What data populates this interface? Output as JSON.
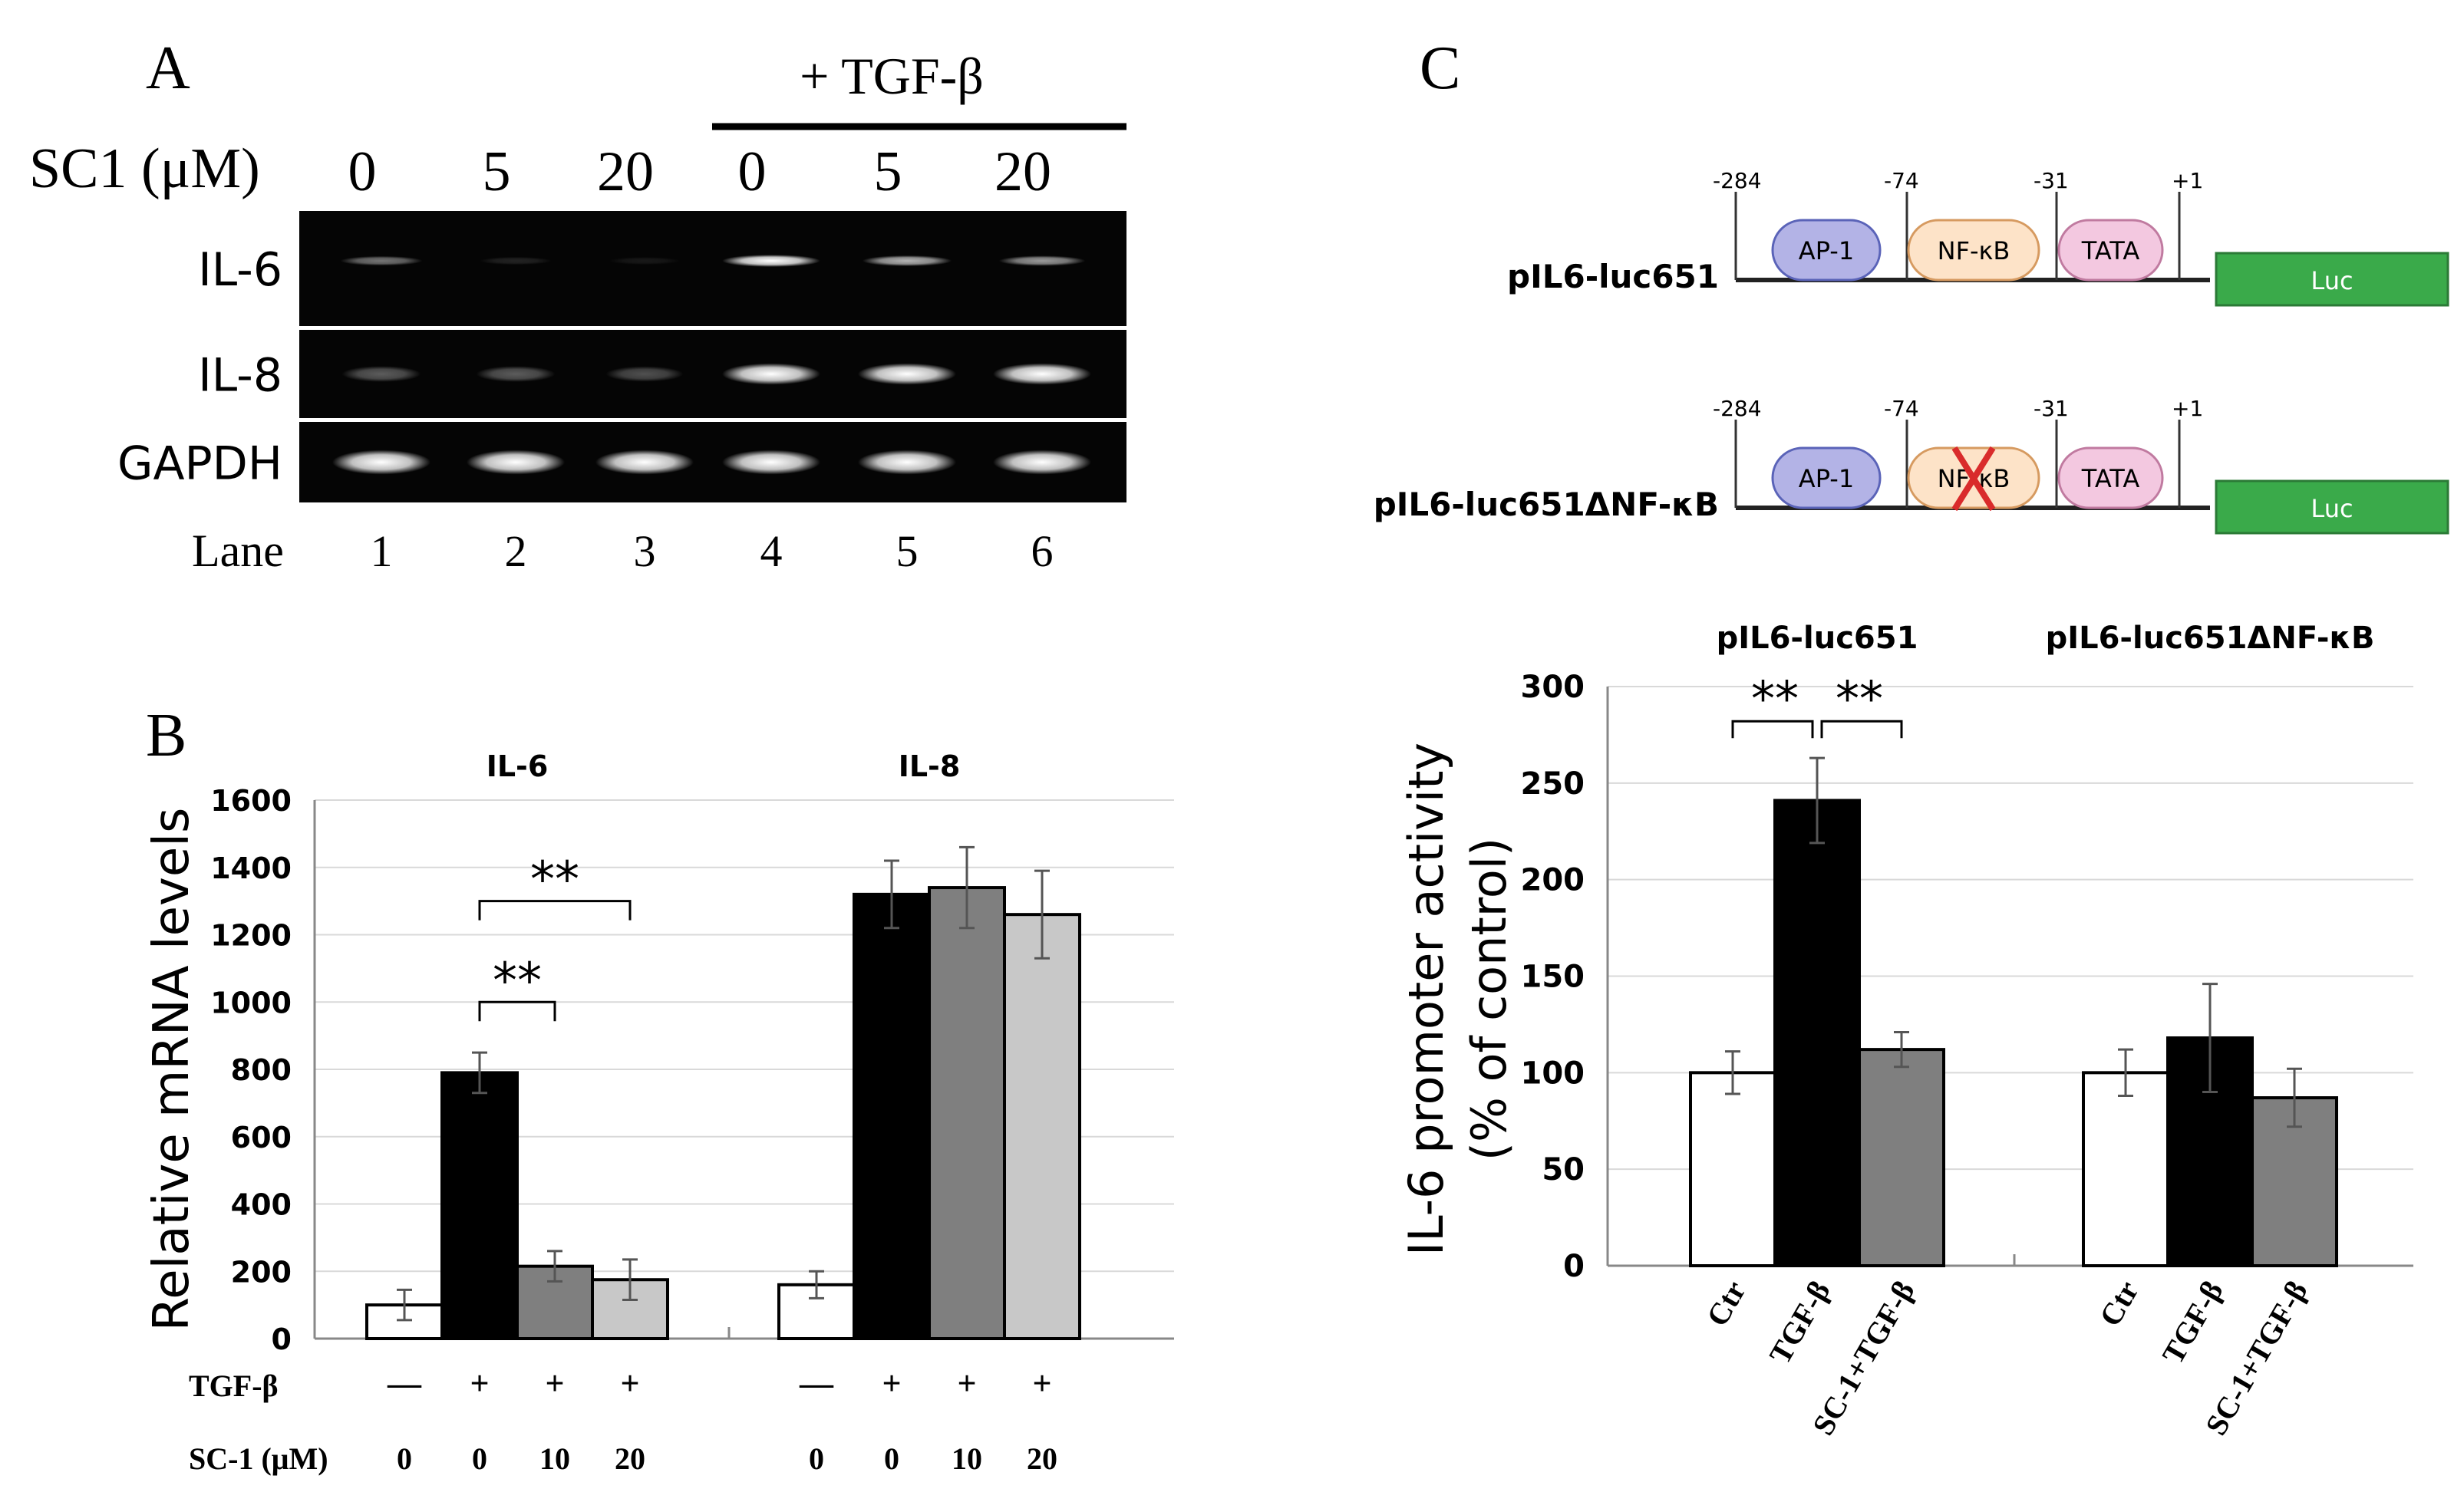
{
  "panel_a": {
    "label": "A",
    "treatment_header": "+ TGF-β",
    "dose_axis_label": "SC1 (μM)",
    "doses": [
      "0",
      "5",
      "20",
      "0",
      "5",
      "20"
    ],
    "genes": [
      "IL-6",
      "IL-8",
      "GAPDH"
    ],
    "lane_label": "Lane",
    "lanes": [
      "1",
      "2",
      "3",
      "4",
      "5",
      "6"
    ],
    "band_intensity": [
      [
        0.45,
        0.12,
        0.08,
        1.0,
        0.7,
        0.6
      ],
      [
        0.35,
        0.35,
        0.3,
        1.0,
        1.0,
        1.0
      ],
      [
        1.0,
        1.0,
        1.0,
        1.0,
        1.0,
        1.0
      ]
    ]
  },
  "panel_b": {
    "label": "B",
    "chart_data": {
      "type": "bar",
      "ylabel": "Relative mRNA levels",
      "ylim": [
        0,
        1600
      ],
      "yticks": [
        "0",
        "200",
        "400",
        "600",
        "800",
        "1000",
        "1200",
        "1400",
        "1600"
      ],
      "grid": true,
      "groups": [
        {
          "name": "IL-6",
          "values": [
            100,
            790,
            215,
            175
          ],
          "errors": [
            45,
            60,
            45,
            60
          ]
        },
        {
          "name": "IL-8",
          "values": [
            160,
            1320,
            1340,
            1260
          ],
          "errors": [
            40,
            100,
            120,
            130
          ]
        }
      ],
      "series_colors": [
        "#ffffff",
        "#000000",
        "#7f7f7f",
        "#c8c8c8"
      ],
      "row_labels": [
        "TGF-β",
        "SC-1 (μM)"
      ],
      "tgf_row": [
        "—",
        "+",
        "+",
        "+"
      ],
      "sc1_row": [
        "0",
        "0",
        "10",
        "20"
      ],
      "significance": [
        {
          "group": 0,
          "from": 1,
          "to": 2,
          "label": "**",
          "y": 1000
        },
        {
          "group": 0,
          "from": 1,
          "to": 3,
          "label": "**",
          "y": 1300
        }
      ]
    }
  },
  "panel_c": {
    "label": "C",
    "constructs": [
      {
        "name": "pIL6-luc651",
        "positions": [
          "-284",
          "-74",
          "-31",
          "+1"
        ],
        "elements": [
          "AP-1",
          "NF-κB",
          "TATA"
        ],
        "reporter": "Luc",
        "nfkb_deleted": false
      },
      {
        "name": "pIL6-luc651ΔNF-κB",
        "positions": [
          "-284",
          "-74",
          "-31",
          "+1"
        ],
        "elements": [
          "AP-1",
          "NF-κB",
          "TATA"
        ],
        "reporter": "Luc",
        "nfkb_deleted": true
      }
    ],
    "element_colors": [
      "#b3b3e6",
      "#fde3c8",
      "#f3c8e0"
    ],
    "reporter_color": "#3aaa4a",
    "chart_data": {
      "type": "bar",
      "ylabel_line1": "IL-6 promoter activity",
      "ylabel_line2": "(% of control)",
      "ylim": [
        0,
        300
      ],
      "yticks": [
        "0",
        "50",
        "100",
        "150",
        "200",
        "250",
        "300"
      ],
      "grid": true,
      "categories": [
        "Ctr",
        "TGF-β",
        "SC-1+TGF-β"
      ],
      "groups": [
        {
          "name": "pIL6-luc651",
          "values": [
            100,
            241,
            112
          ],
          "errors": [
            11,
            22,
            9
          ]
        },
        {
          "name": "pIL6-luc651ΔNF-κB",
          "values": [
            100,
            118,
            87
          ],
          "errors": [
            12,
            28,
            15
          ]
        }
      ],
      "series_colors": [
        "#ffffff",
        "#000000",
        "#7f7f7f"
      ],
      "significance": [
        {
          "group": 0,
          "from": 0,
          "to": 1,
          "label": "**",
          "y": 282
        },
        {
          "group": 0,
          "from": 1,
          "to": 2,
          "label": "**",
          "y": 282
        }
      ]
    }
  }
}
